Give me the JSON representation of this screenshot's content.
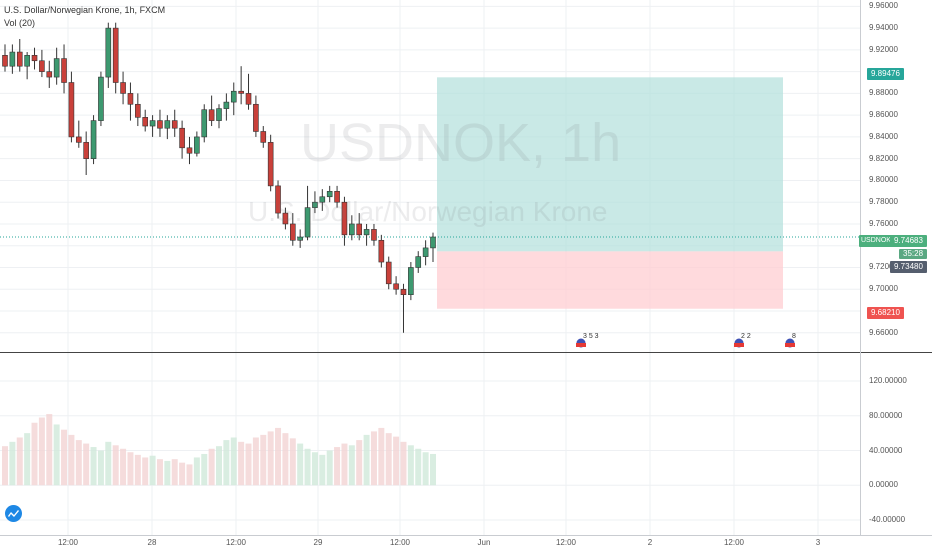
{
  "header": {
    "title": "U.S. Dollar/Norwegian Krone, 1h, FXCM",
    "indicator": "Vol (20)"
  },
  "watermark": {
    "symbol": "USDNOK, 1h",
    "description": "U.S. Dollar/Norwegian Krone"
  },
  "axis": {
    "price_ticks": [
      "9.96000",
      "9.94000",
      "9.92000",
      "9.90000",
      "9.88000",
      "9.86000",
      "9.84000",
      "9.82000",
      "9.80000",
      "9.78000",
      "9.76000",
      "9.72000",
      "9.70000",
      "9.66000"
    ],
    "volume_ticks": [
      "120.00000",
      "80.00000",
      "40.00000",
      "0.00000",
      "-40.00000"
    ],
    "time_labels": [
      "12:00",
      "28",
      "12:00",
      "29",
      "12:00",
      "Jun",
      "12:00",
      "2",
      "12:00",
      "3"
    ]
  },
  "tags": {
    "target": "9.89476",
    "symbol": "USDNOK",
    "current": "9.74683",
    "countdown": "35:28",
    "entry": "9.73480",
    "stop": "9.68210"
  },
  "events": [
    "3 5 3",
    "2 2",
    "8"
  ],
  "colors": {
    "up": "#26a69a",
    "down": "#ef5350",
    "up_fill": "#3d9970",
    "down_fill": "#c9403a",
    "profit_zone": "#b2dfdb",
    "loss_zone": "#ffcdd2"
  },
  "chart_data": {
    "type": "candlestick",
    "series": [
      {
        "name": "USDNOK",
        "values": [
          [
            9.915,
            9.925,
            9.9,
            9.905
          ],
          [
            9.905,
            9.925,
            9.898,
            9.918
          ],
          [
            9.918,
            9.93,
            9.9,
            9.905
          ],
          [
            9.905,
            9.918,
            9.893,
            9.915
          ],
          [
            9.915,
            9.922,
            9.902,
            9.91
          ],
          [
            9.91,
            9.92,
            9.895,
            9.9
          ],
          [
            9.9,
            9.91,
            9.885,
            9.895
          ],
          [
            9.895,
            9.922,
            9.888,
            9.912
          ],
          [
            9.912,
            9.925,
            9.88,
            9.89
          ],
          [
            9.89,
            9.9,
            9.835,
            9.84
          ],
          [
            9.84,
            9.855,
            9.83,
            9.835
          ],
          [
            9.835,
            9.845,
            9.805,
            9.82
          ],
          [
            9.82,
            9.86,
            9.815,
            9.855
          ],
          [
            9.855,
            9.9,
            9.85,
            9.895
          ],
          [
            9.895,
            9.945,
            9.885,
            9.94
          ],
          [
            9.94,
            9.945,
            9.88,
            9.89
          ],
          [
            9.89,
            9.9,
            9.87,
            9.88
          ],
          [
            9.88,
            9.89,
            9.855,
            9.87
          ],
          [
            9.87,
            9.88,
            9.85,
            9.858
          ],
          [
            9.858,
            9.865,
            9.845,
            9.85
          ],
          [
            9.85,
            9.86,
            9.84,
            9.855
          ],
          [
            9.855,
            9.865,
            9.84,
            9.848
          ],
          [
            9.848,
            9.86,
            9.838,
            9.855
          ],
          [
            9.855,
            9.865,
            9.84,
            9.848
          ],
          [
            9.848,
            9.855,
            9.82,
            9.83
          ],
          [
            9.83,
            9.84,
            9.815,
            9.825
          ],
          [
            9.825,
            9.845,
            9.822,
            9.84
          ],
          [
            9.84,
            9.87,
            9.835,
            9.865
          ],
          [
            9.865,
            9.878,
            9.85,
            9.855
          ],
          [
            9.855,
            9.87,
            9.848,
            9.866
          ],
          [
            9.866,
            9.88,
            9.855,
            9.872
          ],
          [
            9.872,
            9.89,
            9.86,
            9.882
          ],
          [
            9.882,
            9.905,
            9.87,
            9.88
          ],
          [
            9.88,
            9.898,
            9.865,
            9.87
          ],
          [
            9.87,
            9.878,
            9.84,
            9.845
          ],
          [
            9.845,
            9.85,
            9.83,
            9.835
          ],
          [
            9.835,
            9.842,
            9.79,
            9.795
          ],
          [
            9.795,
            9.8,
            9.765,
            9.77
          ],
          [
            9.77,
            9.775,
            9.755,
            9.76
          ],
          [
            9.76,
            9.77,
            9.74,
            9.745
          ],
          [
            9.745,
            9.755,
            9.738,
            9.748
          ],
          [
            9.748,
            9.795,
            9.745,
            9.775
          ],
          [
            9.775,
            9.79,
            9.77,
            9.78
          ],
          [
            9.78,
            9.792,
            9.772,
            9.785
          ],
          [
            9.785,
            9.795,
            9.78,
            9.79
          ],
          [
            9.79,
            9.795,
            9.775,
            9.78
          ],
          [
            9.78,
            9.785,
            9.74,
            9.75
          ],
          [
            9.75,
            9.768,
            9.745,
            9.76
          ],
          [
            9.76,
            9.77,
            9.745,
            9.75
          ],
          [
            9.75,
            9.76,
            9.74,
            9.755
          ],
          [
            9.755,
            9.76,
            9.74,
            9.745
          ],
          [
            9.745,
            9.75,
            9.72,
            9.725
          ],
          [
            9.725,
            9.73,
            9.7,
            9.705
          ],
          [
            9.705,
            9.712,
            9.695,
            9.7
          ],
          [
            9.7,
            9.705,
            9.66,
            9.695
          ],
          [
            9.695,
            9.725,
            9.69,
            9.72
          ],
          [
            9.72,
            9.735,
            9.715,
            9.73
          ],
          [
            9.73,
            9.745,
            9.722,
            9.738
          ],
          [
            9.738,
            9.752,
            9.725,
            9.748
          ]
        ]
      }
    ],
    "volume": [
      45,
      50,
      55,
      60,
      72,
      78,
      82,
      70,
      64,
      58,
      52,
      48,
      44,
      40,
      50,
      46,
      42,
      38,
      35,
      32,
      34,
      30,
      28,
      30,
      26,
      24,
      32,
      36,
      42,
      45,
      52,
      55,
      50,
      48,
      55,
      58,
      62,
      66,
      60,
      54,
      48,
      42,
      38,
      35,
      40,
      44,
      48,
      46,
      52,
      58,
      62,
      66,
      60,
      56,
      50,
      46,
      42,
      38,
      36
    ],
    "volume_ylim": [
      -55,
      150
    ],
    "position": {
      "entry": 9.7348,
      "target": 9.89476,
      "stop": 9.6821
    },
    "ylim": [
      9.646,
      9.964
    ],
    "ylabel": "",
    "xlabel": "",
    "grid": true
  }
}
